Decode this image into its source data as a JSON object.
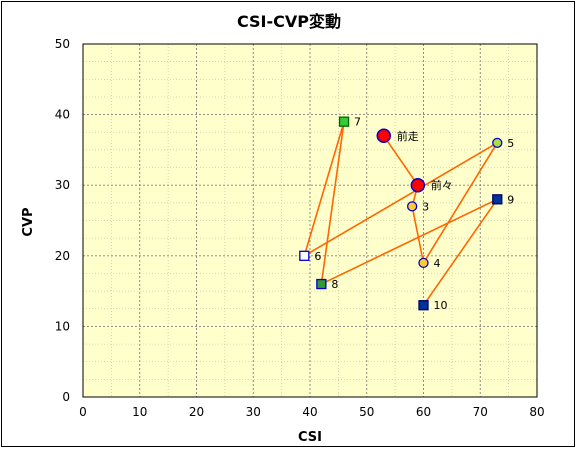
{
  "chart_data": {
    "type": "scatter",
    "title": "CSI-CVP変動",
    "xlabel": "CSI",
    "ylabel": "CVP",
    "xlim": [
      0,
      80
    ],
    "ylim": [
      0,
      50
    ],
    "x_ticks": [
      "0",
      "10",
      "20",
      "30",
      "40",
      "50",
      "60",
      "70",
      "80"
    ],
    "y_ticks": [
      "0",
      "10",
      "20",
      "30",
      "40",
      "50"
    ],
    "grid": true,
    "background": "#ffffcc",
    "connector_color": "#ff6600",
    "points": [
      {
        "label": "前走",
        "x": 53,
        "y": 37,
        "marker": "circle-large",
        "fill": "#ff0000",
        "stroke": "#0000cc"
      },
      {
        "label": "前々",
        "x": 59,
        "y": 30,
        "marker": "circle-large",
        "fill": "#ff0000",
        "stroke": "#0000cc"
      },
      {
        "label": "3",
        "x": 58,
        "y": 27,
        "marker": "circle",
        "fill": "#ffcc33",
        "stroke": "#0000cc"
      },
      {
        "label": "4",
        "x": 60,
        "y": 19,
        "marker": "circle",
        "fill": "#ffcc33",
        "stroke": "#0000cc"
      },
      {
        "label": "5",
        "x": 73,
        "y": 36,
        "marker": "circle",
        "fill": "#aadd44",
        "stroke": "#0000cc"
      },
      {
        "label": "6",
        "x": 39,
        "y": 20,
        "marker": "square",
        "fill": "#ffffff",
        "stroke": "#0000cc"
      },
      {
        "label": "7",
        "x": 46,
        "y": 39,
        "marker": "square",
        "fill": "#33cc33",
        "stroke": "#006600"
      },
      {
        "label": "8",
        "x": 42,
        "y": 16,
        "marker": "square",
        "fill": "#339933",
        "stroke": "#0000cc"
      },
      {
        "label": "9",
        "x": 73,
        "y": 28,
        "marker": "square",
        "fill": "#003399",
        "stroke": "#000066"
      },
      {
        "label": "10",
        "x": 60,
        "y": 13,
        "marker": "square",
        "fill": "#003399",
        "stroke": "#000066"
      }
    ]
  }
}
